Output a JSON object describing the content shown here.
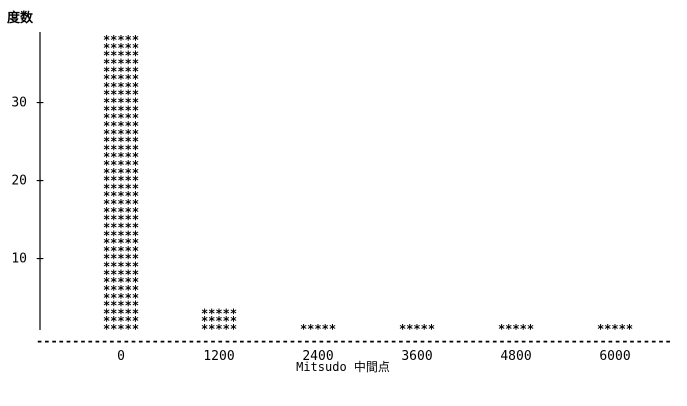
{
  "chart_data": {
    "type": "bar",
    "style": "ascii-histogram",
    "ylabel": "度数",
    "xlabel": "Mitsudo 中間点",
    "mark_symbol": "*****",
    "x_ticks": [
      "0",
      "1200",
      "2400",
      "3600",
      "4800",
      "6000"
    ],
    "categories": [
      "0",
      "1200",
      "2400",
      "3600",
      "4800",
      "6000"
    ],
    "values": [
      38,
      3,
      1,
      1,
      1,
      1
    ],
    "y_ticks": [
      10,
      20,
      30
    ],
    "ylim": [
      0,
      38
    ],
    "grid": false,
    "legend": "none"
  }
}
